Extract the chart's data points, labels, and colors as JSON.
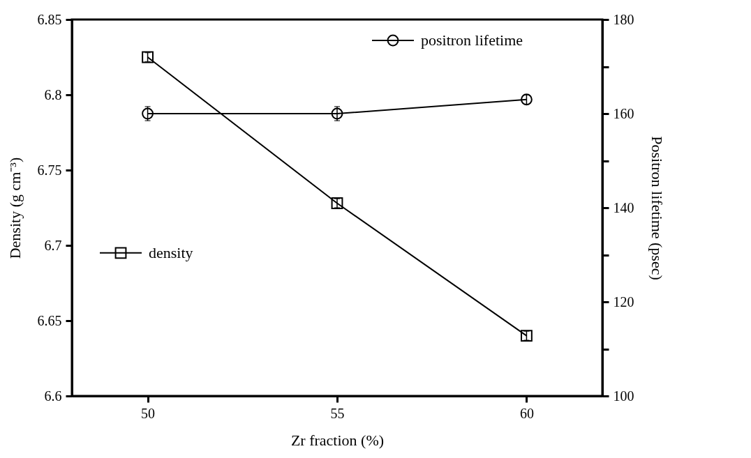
{
  "chart_data": {
    "type": "line",
    "xlabel": "Zr fraction (%)",
    "ylabel": "Density (g cm⁻³)",
    "y2label": "Positron lifetime (psec)",
    "x": [
      50,
      55,
      60
    ],
    "xlim": [
      48,
      62
    ],
    "xticks": [
      50,
      55,
      60
    ],
    "ylim": [
      6.6,
      6.85
    ],
    "yticks": [
      6.6,
      6.65,
      6.7,
      6.75,
      6.8,
      6.85
    ],
    "y2lim": [
      100,
      180
    ],
    "y2ticks": [
      100,
      {
        "value": 110,
        "label": null
      },
      120,
      {
        "value": 130,
        "label": null
      },
      140,
      {
        "value": 150,
        "label": null
      },
      160,
      {
        "value": 170,
        "label": null
      },
      180
    ],
    "legend": "top right",
    "grid": false,
    "line_style": "solid",
    "series": [
      {
        "name": "density",
        "color": "#000000",
        "marker": "square",
        "values": [
          6.825,
          6.728,
          6.64
        ],
        "errors": [
          0.003,
          0.003,
          0.003
        ]
      },
      {
        "name": "positron lifetime",
        "color": "#000000",
        "marker": "circle",
        "axis": "y2",
        "values": [
          160,
          160,
          163
        ],
        "errors": [
          1.5,
          1.5,
          1
        ]
      }
    ]
  }
}
